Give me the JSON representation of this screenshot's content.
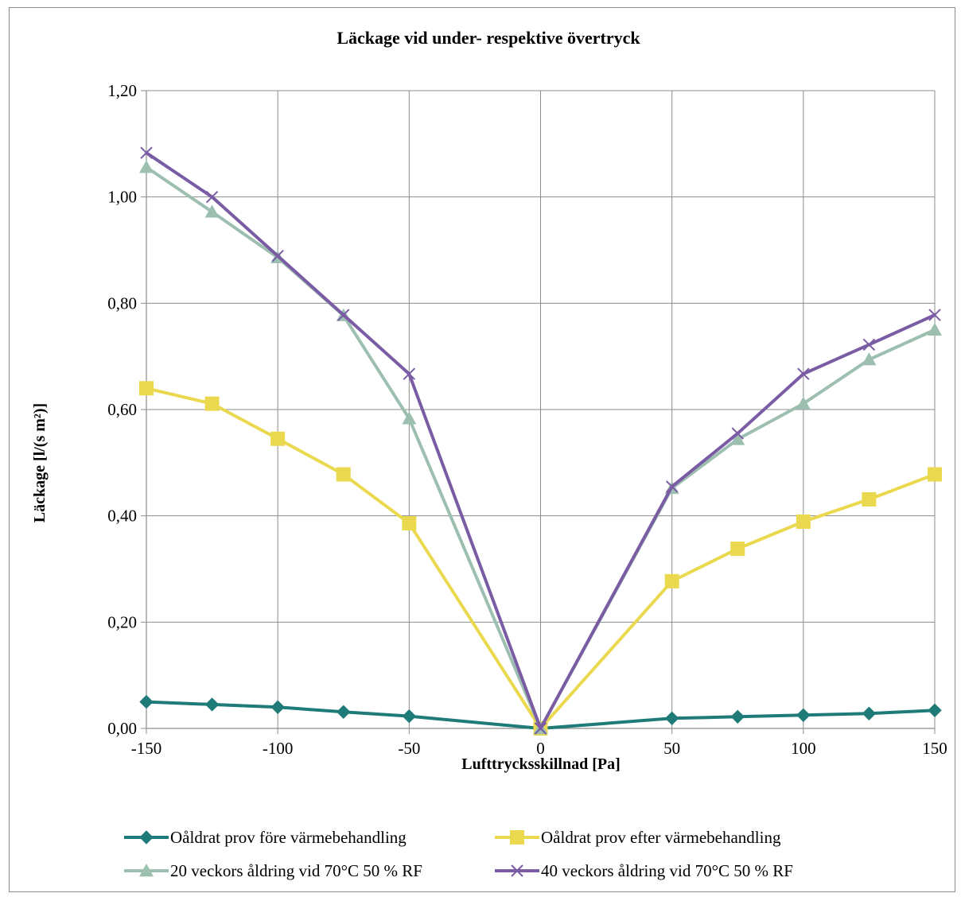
{
  "chart_data": {
    "type": "line",
    "title": "Läckage vid under- respektive övertryck",
    "xlabel": "Lufttrycksskillnad [Pa]",
    "ylabel": "Läckage [l/(s m²)]",
    "x": [
      -150,
      -125,
      -100,
      -75,
      -50,
      0,
      50,
      75,
      100,
      125,
      150
    ],
    "xlim": [
      -150,
      150
    ],
    "ylim": [
      0,
      1.2
    ],
    "x_ticks": [
      -150,
      -100,
      -50,
      0,
      50,
      100,
      150
    ],
    "x_tick_labels": [
      "-150",
      "-100",
      "-50",
      "0",
      "50",
      "100",
      "150"
    ],
    "y_ticks": [
      0,
      0.2,
      0.4,
      0.6,
      0.8,
      1.0,
      1.2
    ],
    "y_tick_labels": [
      "0,00",
      "0,20",
      "0,40",
      "0,60",
      "0,80",
      "1,00",
      "1,20"
    ],
    "grid": true,
    "legend_position": "bottom",
    "series": [
      {
        "name": "Oåldrat prov före värmebehandling",
        "color": "#1f7b78",
        "marker": "diamond",
        "values": [
          0.05,
          0.045,
          0.04,
          0.031,
          0.023,
          0.0,
          0.019,
          0.022,
          0.025,
          0.028,
          0.034
        ]
      },
      {
        "name": "Oåldrat prov efter värmebehandling",
        "color": "#ead94e",
        "marker": "square",
        "values": [
          0.64,
          0.611,
          0.545,
          0.478,
          0.386,
          0.0,
          0.277,
          0.338,
          0.389,
          0.431,
          0.478
        ]
      },
      {
        "name": "20 veckors åldring vid 70°C 50 % RF",
        "color": "#9dbfb0",
        "marker": "triangle",
        "values": [
          1.056,
          0.972,
          0.886,
          0.777,
          0.583,
          0.0,
          0.452,
          0.544,
          0.611,
          0.694,
          0.75
        ]
      },
      {
        "name": "40 veckors åldring vid 70°C 50 % RF",
        "color": "#7a5ca5",
        "marker": "x",
        "values": [
          1.083,
          1.0,
          0.889,
          0.778,
          0.667,
          0.0,
          0.455,
          0.555,
          0.667,
          0.722,
          0.778
        ]
      }
    ]
  }
}
